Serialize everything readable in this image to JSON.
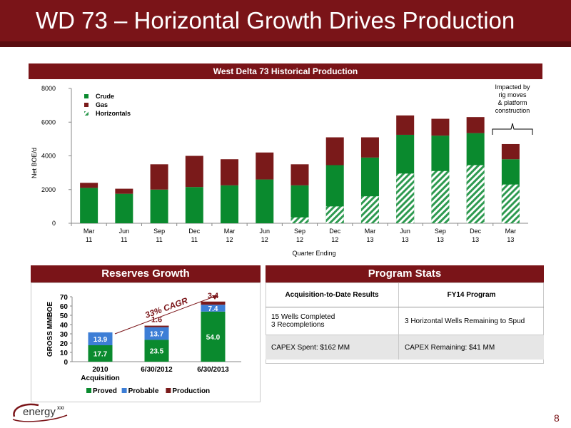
{
  "slide": {
    "title": "WD 73 – Horizontal Growth Drives Production",
    "page_number": "8",
    "logo_text": "energy",
    "logo_sup": "XXI"
  },
  "production_chart": {
    "band_title": "West Delta 73 Historical Production",
    "annotation": [
      "Impacted by",
      "rig moves",
      "& platform",
      "construction"
    ]
  },
  "reserves": {
    "band_title": "Reserves Growth",
    "cagr_label": "33% CAGR"
  },
  "program": {
    "band_title": "Program Stats",
    "headers": [
      "Acquisition-to-Date Results",
      "FY14 Program"
    ],
    "rows": [
      [
        "15 Wells Completed\n3 Recompletions",
        "3 Horizontal Wells Remaining to Spud"
      ],
      [
        "CAPEX Spent: $162 MM",
        "CAPEX Remaining: $41 MM"
      ]
    ]
  },
  "colors": {
    "maroon": "#7a1418",
    "crude": "#0a8a2e",
    "gas": "#7a1a1a",
    "probable": "#3d7ed6",
    "horizontals_light": "#8fd8b0"
  },
  "chart_data": [
    {
      "type": "bar",
      "title": "West Delta 73 Historical Production",
      "xlabel": "Quarter Ending",
      "ylabel": "Net BOE/d",
      "ylim": [
        0,
        8000
      ],
      "yticks": [
        0,
        2000,
        4000,
        6000,
        8000
      ],
      "grid": false,
      "legend": "top-left",
      "categories": [
        [
          "Mar",
          "11"
        ],
        [
          "Jun",
          "11"
        ],
        [
          "Sep",
          "11"
        ],
        [
          "Dec",
          "11"
        ],
        [
          "Mar",
          "12"
        ],
        [
          "Jun",
          "12"
        ],
        [
          "Sep",
          "12"
        ],
        [
          "Dec",
          "12"
        ],
        [
          "Mar",
          "13"
        ],
        [
          "Jun",
          "13"
        ],
        [
          "Sep",
          "13"
        ],
        [
          "Dec",
          "13"
        ],
        [
          "Mar",
          "13"
        ]
      ],
      "series": [
        {
          "name": "Crude",
          "values": [
            2100,
            1750,
            2000,
            2150,
            2250,
            2600,
            2250,
            3450,
            3900,
            5250,
            5200,
            5350,
            3800
          ]
        },
        {
          "name": "Gas",
          "values": [
            300,
            300,
            1500,
            1850,
            1550,
            1600,
            1250,
            1650,
            1200,
            1150,
            1000,
            950,
            900
          ]
        },
        {
          "name": "Horizontals",
          "values": [
            0,
            0,
            0,
            0,
            0,
            0,
            350,
            1000,
            1600,
            2950,
            3100,
            3450,
            2300
          ]
        }
      ]
    },
    {
      "type": "bar",
      "ylabel": "GROSS MMBOE",
      "ylim": [
        0,
        70
      ],
      "yticks": [
        0,
        10,
        20,
        30,
        40,
        50,
        60,
        70
      ],
      "legend": "bottom",
      "categories": [
        [
          "2010",
          "Acquisition"
        ],
        [
          "6/30/2012"
        ],
        [
          "6/30/2013"
        ]
      ],
      "series": [
        {
          "name": "Proved",
          "values": [
            17.7,
            23.5,
            54.0
          ]
        },
        {
          "name": "Probable",
          "values": [
            13.9,
            13.7,
            7.4
          ]
        },
        {
          "name": "Production",
          "values": [
            0,
            1.6,
            3.4
          ]
        }
      ],
      "value_labels": [
        [
          "17.7",
          "13.9",
          ""
        ],
        [
          "23.5",
          "13.7",
          "1.6"
        ],
        [
          "54.0",
          "7.4",
          "3.4"
        ]
      ]
    }
  ]
}
